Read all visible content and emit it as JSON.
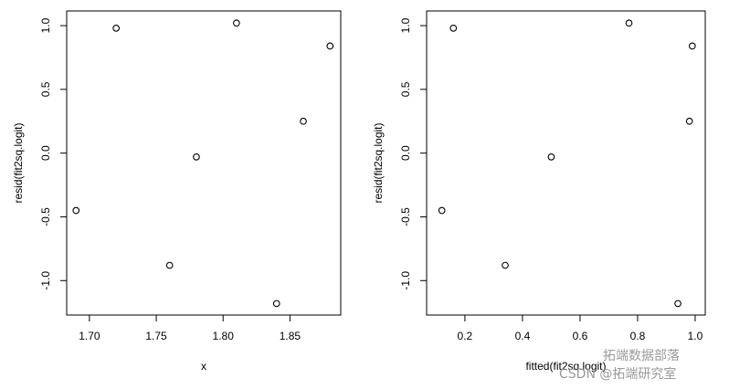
{
  "chart_data": [
    {
      "type": "scatter",
      "xlabel": "x",
      "ylabel": "resid(fit2sq.logit)",
      "x": [
        1.69,
        1.72,
        1.76,
        1.78,
        1.81,
        1.84,
        1.86,
        1.88
      ],
      "values": [
        -0.45,
        0.98,
        -0.88,
        -0.03,
        1.02,
        -1.18,
        0.25,
        0.84
      ],
      "color": "#000000",
      "xlim": [
        1.683,
        1.888
      ],
      "ylim": [
        -1.27,
        1.115
      ],
      "xticks": [
        {
          "value": 1.7,
          "label": "1.70"
        },
        {
          "value": 1.75,
          "label": "1.75"
        },
        {
          "value": 1.8,
          "label": "1.80"
        },
        {
          "value": 1.85,
          "label": "1.85"
        }
      ],
      "yticks": [
        {
          "value": -1,
          "label": "-1.0"
        },
        -0.5,
        {
          "value": 0,
          "label": "0.0"
        },
        0.5,
        {
          "value": 1,
          "label": "1.0"
        }
      ]
    },
    {
      "type": "scatter",
      "xlabel": "fitted(fit2sq.logit)",
      "ylabel": "resid(fit2sq.logit)",
      "x": [
        0.12,
        0.16,
        0.34,
        0.5,
        0.77,
        0.94,
        0.98,
        0.99
      ],
      "values": [
        -0.45,
        0.98,
        -0.88,
        -0.03,
        1.02,
        -1.18,
        0.25,
        0.84
      ],
      "color": "#000000",
      "xlim": [
        0.067,
        1.035
      ],
      "ylim": [
        -1.27,
        1.115
      ],
      "xticks": [
        0.2,
        0.4,
        0.6,
        0.8,
        {
          "value": 1,
          "label": "1.0"
        }
      ],
      "yticks": [
        {
          "value": -1,
          "label": "-1.0"
        },
        -0.5,
        {
          "value": 0,
          "label": "0.0"
        },
        0.5,
        {
          "value": 1,
          "label": "1.0"
        }
      ]
    }
  ],
  "watermark": {
    "line1": "拓端数据部落",
    "line2": "CSDN @拓端研究室"
  }
}
